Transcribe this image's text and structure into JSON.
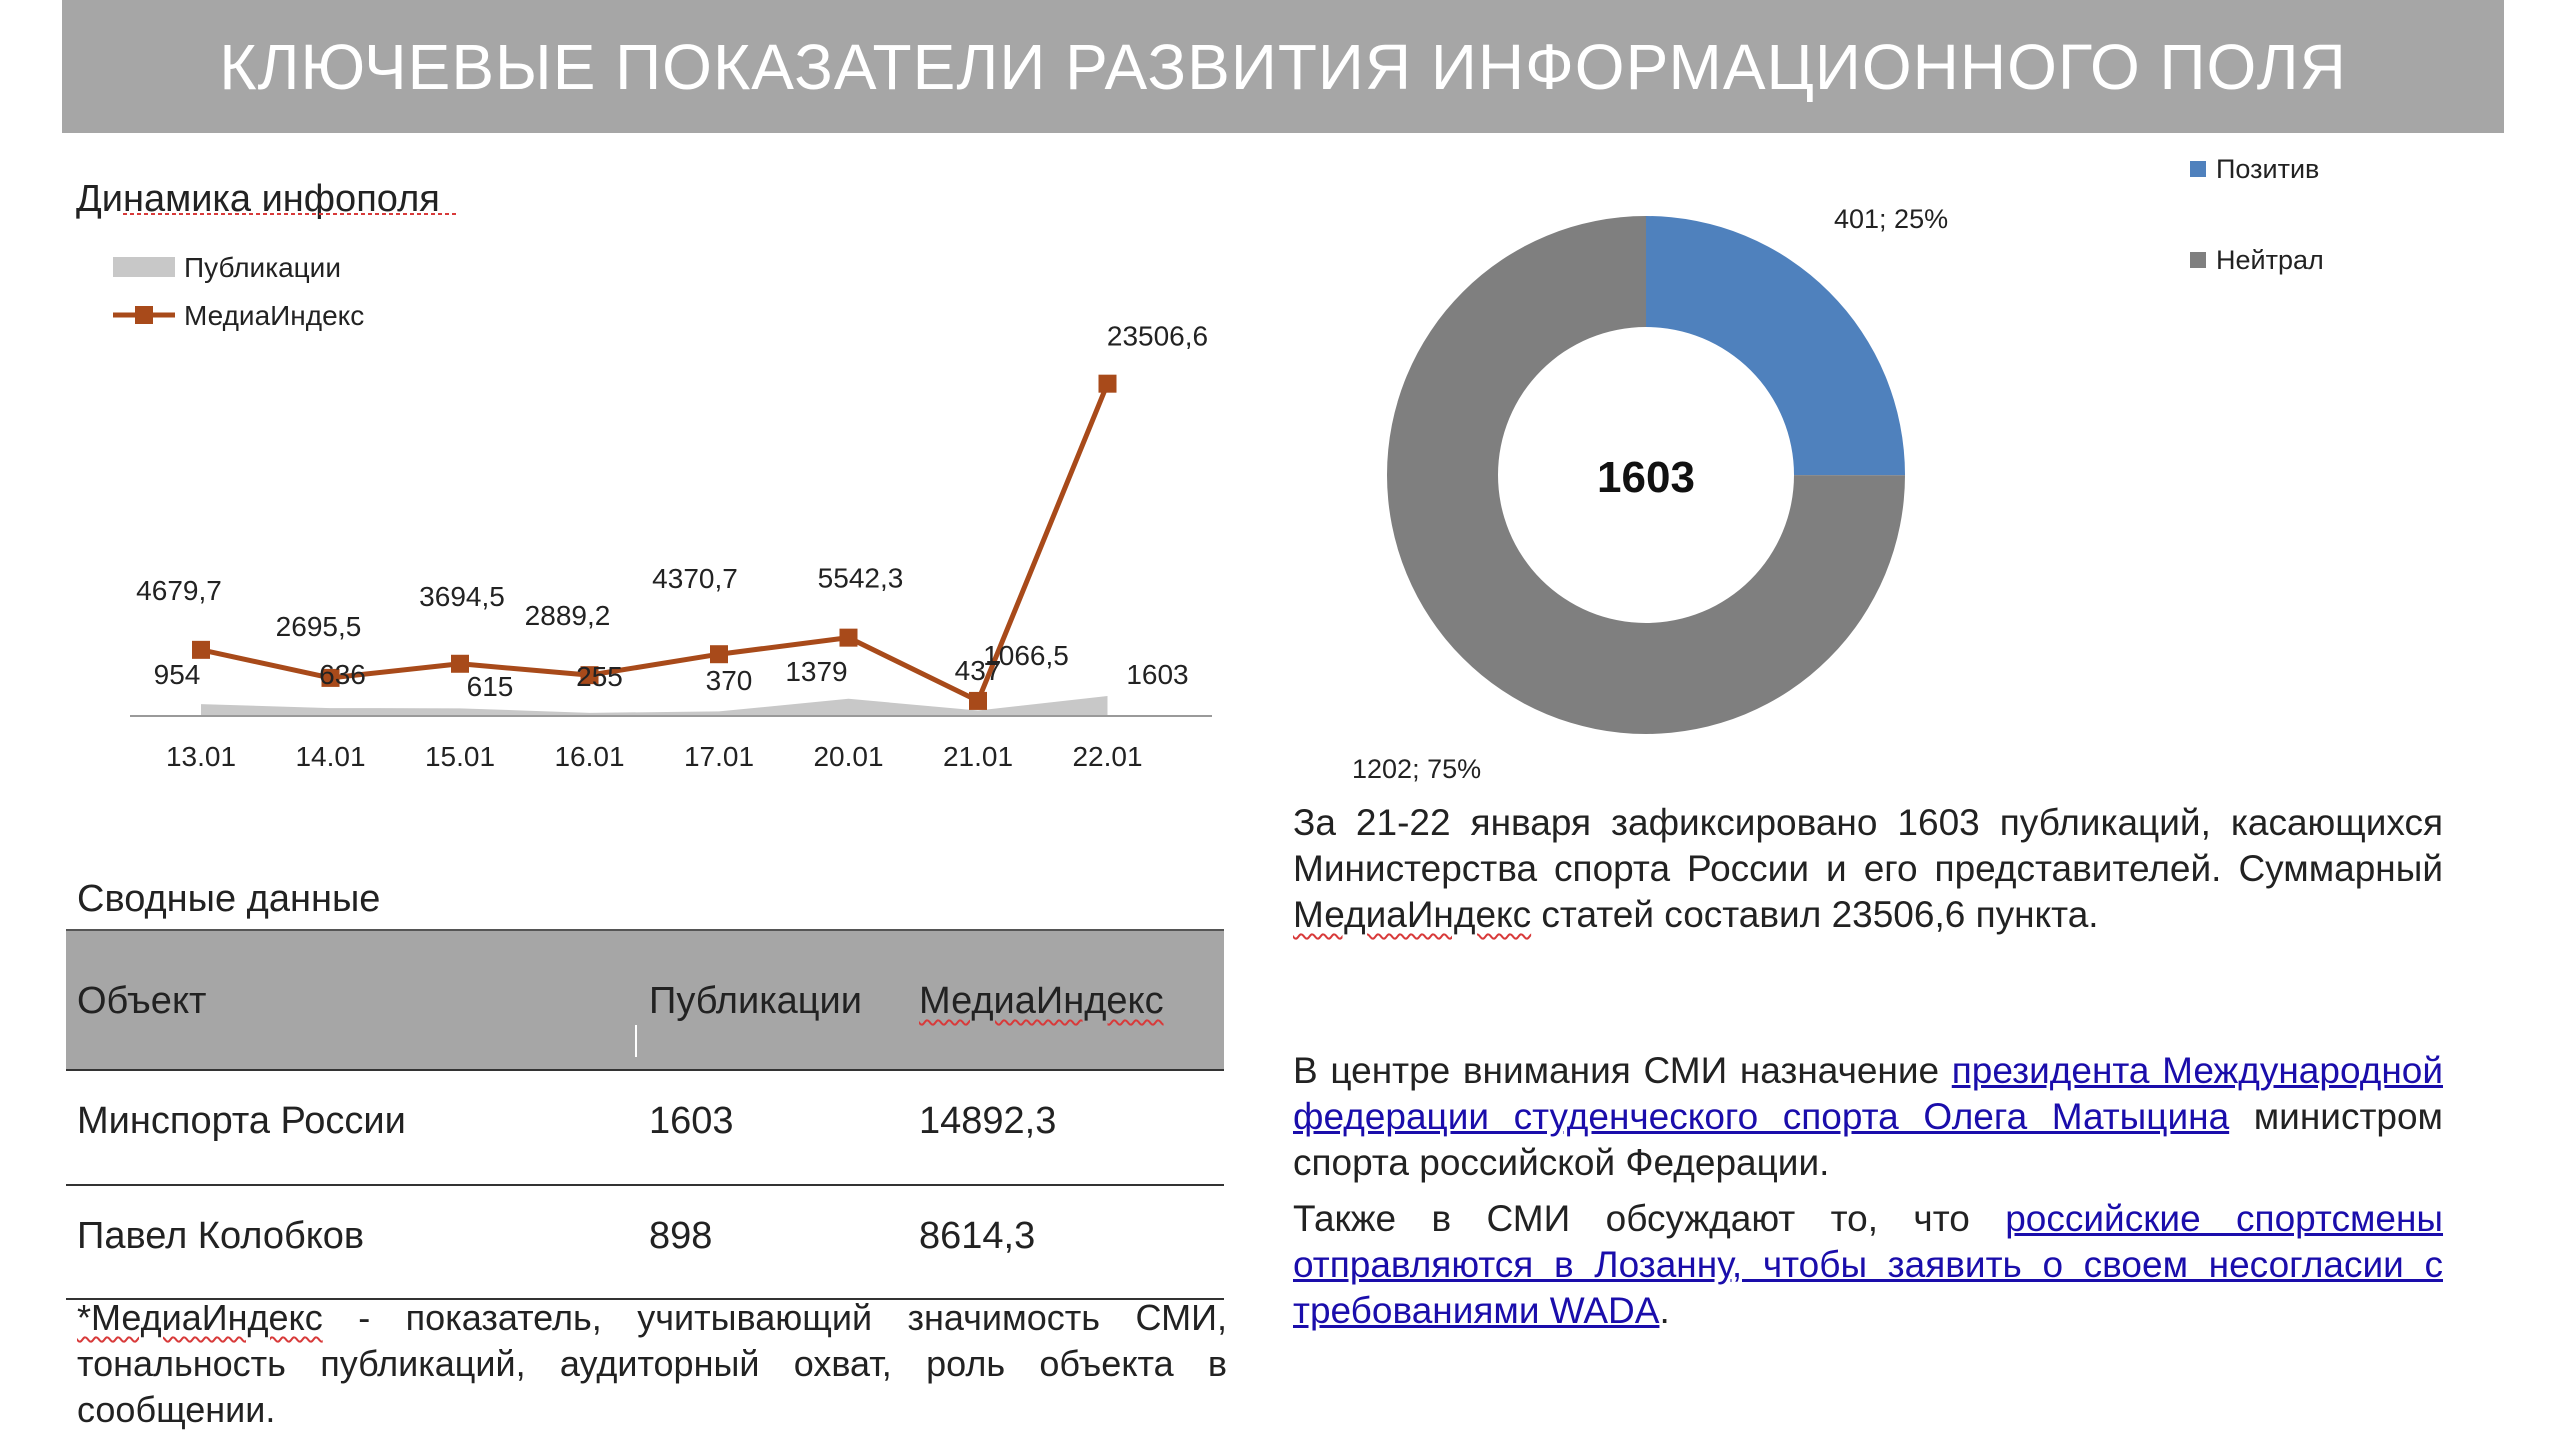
{
  "header": {
    "title": "КЛЮЧЕВЫЕ ПОКАЗАТЕЛИ РАЗВИТИЯ ИНФОРМАЦИОННОГО ПОЛЯ"
  },
  "chart_data": [
    {
      "type": "line",
      "title": "Динамика инфополя",
      "categories": [
        "13.01",
        "14.01",
        "15.01",
        "16.01",
        "17.01",
        "20.01",
        "21.01",
        "22.01"
      ],
      "series": [
        {
          "name": "Публикации",
          "kind": "area",
          "color": "#c8c8c8",
          "values": [
            954,
            636,
            615,
            255,
            370,
            1379,
            437,
            1603
          ],
          "labels": [
            "954",
            "636",
            "615",
            "255",
            "370",
            "1379",
            "437",
            "1603"
          ]
        },
        {
          "name": "МедиаИндекс",
          "kind": "line",
          "color": "#a84a1a",
          "values": [
            4679.7,
            2695.5,
            3694.5,
            2889.2,
            4370.7,
            5542.3,
            1066.5,
            23506.6
          ],
          "labels": [
            "4679,7",
            "2695,5",
            "3694,5",
            "2889,2",
            "4370,7",
            "5542,3",
            "1066,5",
            "23506,6"
          ]
        }
      ],
      "grid": false,
      "legend": "top-left"
    },
    {
      "type": "pie",
      "donut": true,
      "center_label": "1603",
      "slices": [
        {
          "name": "Позитив",
          "value": 401,
          "percent": 25,
          "label": "401; 25%",
          "color": "#4f81bd"
        },
        {
          "name": "Нейтрал",
          "value": 1202,
          "percent": 75,
          "label": "1202; 75%",
          "color": "#7f7f7f"
        }
      ],
      "legend": "top-right"
    }
  ],
  "summary": {
    "title": "Сводные данные",
    "columns": [
      "Объект",
      "Публикации",
      "МедиаИндекс"
    ],
    "rows": [
      [
        "Минспорта России",
        "1603",
        "14892,3"
      ],
      [
        "Павел Колобков",
        "898",
        "8614,3"
      ]
    ],
    "note_term": "*МедиаИндекс",
    "note_rest": " - показатель, учитывающий значимость СМИ, тональность публикаций, аудиторный охват, роль объекта в сообщении."
  },
  "text": {
    "p1_a": "За 21-22 января зафиксировано 1603 публикаций, касающихся Министерства спорта России и его представителей. Суммарный ",
    "p1_term": "МедиаИндекс",
    "p1_b": " статей составил 23506,6 пункта.",
    "p2_a": "В центре внимания СМИ назначение ",
    "p2_link": "президента Международной федерации студенческого спорта Олега Матыцина",
    "p2_b": " министром спорта российской Федерации.",
    "p3_a": "Также в СМИ обсуждают то, что ",
    "p3_link": "российские спортсмены отправляются в Лозанну, чтобы заявить о своем несогласии с требованиями WADA",
    "p3_b": "."
  }
}
